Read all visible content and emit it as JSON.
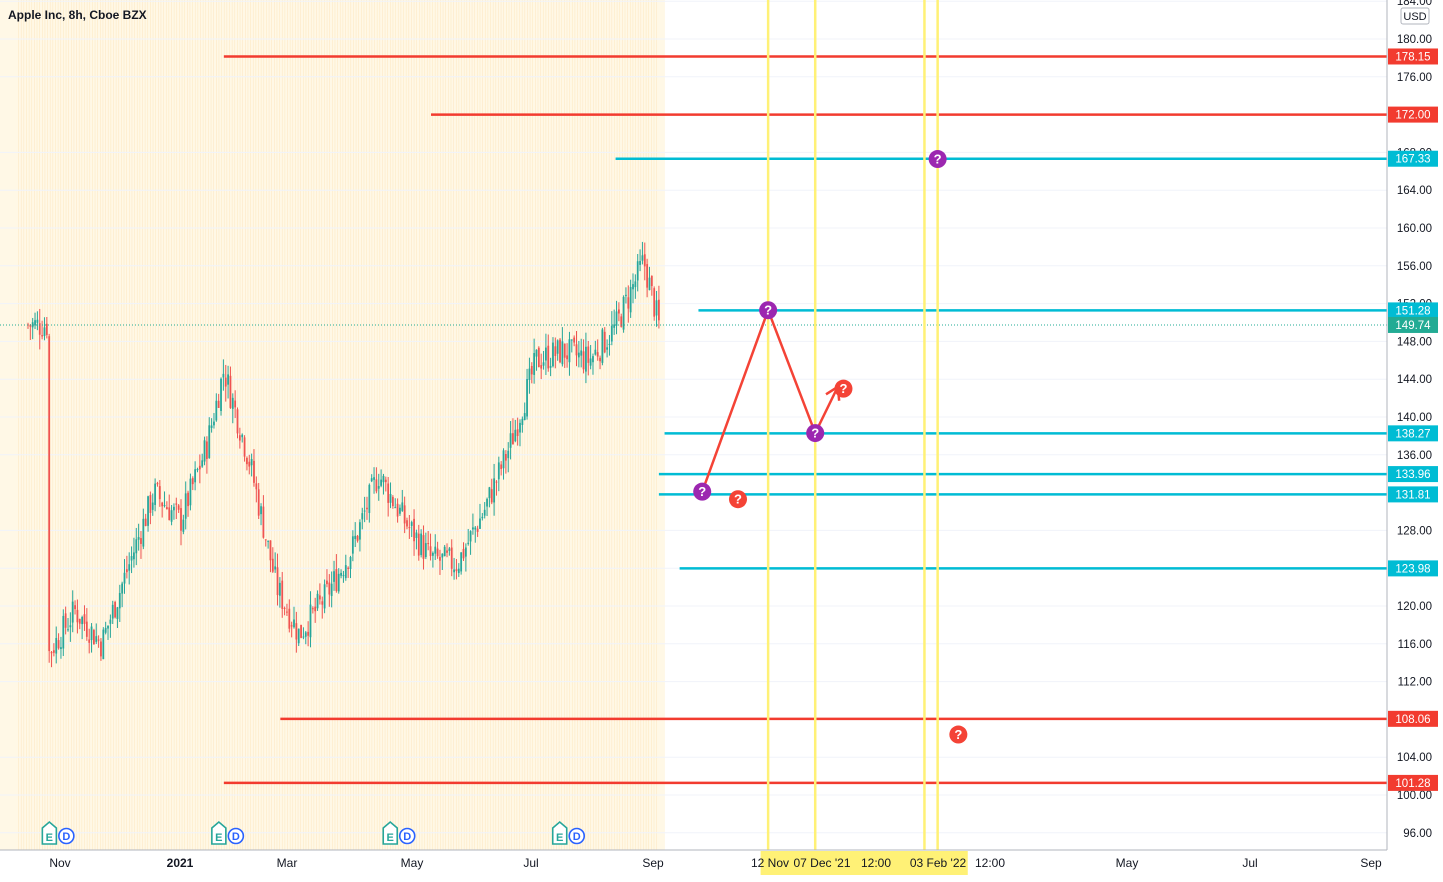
{
  "title": "Apple Inc, 8h, Cboe BZX",
  "currency": "USD",
  "colors": {
    "up": "#26a69a",
    "down": "#ef5350",
    "resistance": "#f23b2f",
    "support": "#00bcd4",
    "vline": "#fff176",
    "path": "#f44336",
    "purple": "#9c27b0",
    "last": "#22ab94",
    "session_bg": "#fff8e6"
  },
  "chart_data": {
    "type": "candlestick",
    "price_axis_ticks": [
      "184.00",
      "180.00",
      "176.00",
      "168.00",
      "164.00",
      "160.00",
      "156.00",
      "152.00",
      "148.00",
      "144.00",
      "140.00",
      "136.00",
      "128.00",
      "124.00",
      "120.00",
      "116.00",
      "112.00",
      "104.00",
      "100.00",
      "96.00"
    ],
    "time_axis_labels": [
      {
        "label": "Nov",
        "bold": false
      },
      {
        "label": "2021",
        "bold": true
      },
      {
        "label": "Mar",
        "bold": false
      },
      {
        "label": "May",
        "bold": false
      },
      {
        "label": "Jul",
        "bold": false
      },
      {
        "label": "Sep",
        "bold": false
      },
      {
        "label": "May",
        "bold": false
      },
      {
        "label": "Jul",
        "bold": false
      },
      {
        "label": "Sep",
        "bold": false
      }
    ],
    "time_axis_highlight": [
      "12 Nov",
      "07 Dec '21",
      "12:00",
      "03 Feb '22",
      "12:00"
    ],
    "price_path": [
      {
        "date": "2020-10-26",
        "close": 115.0
      },
      {
        "date": "2020-11-09",
        "close": 119.5
      },
      {
        "date": "2020-11-23",
        "close": 116.0
      },
      {
        "date": "2020-12-07",
        "close": 124.0
      },
      {
        "date": "2020-12-21",
        "close": 132.0
      },
      {
        "date": "2021-01-04",
        "close": 129.0
      },
      {
        "date": "2021-01-18",
        "close": 137.0
      },
      {
        "date": "2021-01-27",
        "close": 145.0
      },
      {
        "date": "2021-02-10",
        "close": 135.0
      },
      {
        "date": "2021-02-24",
        "close": 122.0
      },
      {
        "date": "2021-03-08",
        "close": 117.0
      },
      {
        "date": "2021-03-22",
        "close": 121.0
      },
      {
        "date": "2021-04-05",
        "close": 126.0
      },
      {
        "date": "2021-04-19",
        "close": 134.0
      },
      {
        "date": "2021-05-03",
        "close": 129.0
      },
      {
        "date": "2021-05-17",
        "close": 125.0
      },
      {
        "date": "2021-05-31",
        "close": 124.5
      },
      {
        "date": "2021-06-14",
        "close": 130.0
      },
      {
        "date": "2021-06-28",
        "close": 137.0
      },
      {
        "date": "2021-07-12",
        "close": 146.0
      },
      {
        "date": "2021-07-26",
        "close": 147.0
      },
      {
        "date": "2021-08-09",
        "close": 146.0
      },
      {
        "date": "2021-08-23",
        "close": 149.5
      },
      {
        "date": "2021-09-07",
        "close": 156.5
      },
      {
        "date": "2021-09-15",
        "close": 149.74
      }
    ],
    "last_price": "149.74",
    "horizontal_levels": [
      {
        "value": "178.15",
        "kind": "resistance",
        "from": "2021-01-27"
      },
      {
        "value": "172.00",
        "kind": "resistance",
        "from": "2021-05-17"
      },
      {
        "value": "167.33",
        "kind": "support",
        "from": "2021-08-23"
      },
      {
        "value": "151.28",
        "kind": "support",
        "from": "2021-10-06"
      },
      {
        "value": "138.27",
        "kind": "support",
        "from": "2021-09-18"
      },
      {
        "value": "133.96",
        "kind": "support",
        "from": "2021-09-15"
      },
      {
        "value": "131.81",
        "kind": "support",
        "from": "2021-09-15"
      },
      {
        "value": "123.98",
        "kind": "support",
        "from": "2021-09-26"
      },
      {
        "value": "108.06",
        "kind": "resistance",
        "from": "2021-02-26"
      },
      {
        "value": "101.28",
        "kind": "resistance",
        "from": "2021-01-27"
      }
    ],
    "vertical_markers": [
      "2021-11-12",
      "2021-12-07",
      "2022-02-03",
      "2022-02-10"
    ],
    "projection_path": [
      {
        "date": "2021-10-08",
        "price": 132.1
      },
      {
        "date": "2021-11-12",
        "price": 151.3
      },
      {
        "date": "2021-12-07",
        "price": 138.3
      },
      {
        "date": "2021-12-19",
        "price": 143.2
      }
    ],
    "question_marks": [
      {
        "date": "2021-10-08",
        "price": 132.1,
        "color": "purple"
      },
      {
        "date": "2021-10-27",
        "price": 131.3,
        "color": "red"
      },
      {
        "date": "2021-11-12",
        "price": 151.3,
        "color": "purple"
      },
      {
        "date": "2021-12-07",
        "price": 138.3,
        "color": "purple"
      },
      {
        "date": "2021-12-22",
        "price": 143.0,
        "color": "red"
      },
      {
        "date": "2022-02-10",
        "price": 167.3,
        "color": "purple"
      },
      {
        "date": "2022-02-21",
        "price": 106.4,
        "color": "red"
      }
    ],
    "earnings_markers": [
      {
        "date": "2020-10-29",
        "labels": [
          "E",
          "D"
        ]
      },
      {
        "date": "2021-01-27",
        "labels": [
          "E",
          "D"
        ]
      },
      {
        "date": "2021-04-28",
        "labels": [
          "E",
          "D"
        ]
      },
      {
        "date": "2021-07-27",
        "labels": [
          "E",
          "D"
        ]
      }
    ]
  }
}
